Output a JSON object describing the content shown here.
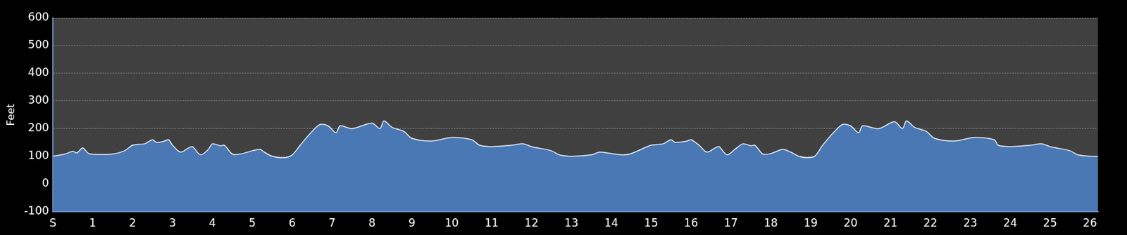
{
  "chart_data": {
    "type": "area",
    "y_label": "Feet",
    "x": [
      0,
      0.3,
      0.5,
      0.6,
      0.75,
      0.9,
      1.2,
      1.5,
      1.8,
      2.0,
      2.3,
      2.5,
      2.6,
      2.8,
      2.9,
      3.0,
      3.2,
      3.4,
      3.5,
      3.7,
      3.9,
      4.0,
      4.2,
      4.3,
      4.5,
      4.7,
      5.0,
      5.2,
      5.3,
      5.5,
      5.8,
      6.0,
      6.2,
      6.5,
      6.7,
      6.9,
      7.1,
      7.2,
      7.5,
      8.0,
      8.2,
      8.3,
      8.5,
      8.8,
      9.0,
      9.5,
      10.0,
      10.5,
      10.7,
      11.0,
      11.5,
      11.8,
      12.0,
      12.5,
      12.7,
      13.0,
      13.5,
      13.7,
      14.0,
      14.3,
      14.5,
      15.0,
      15.3,
      15.5,
      15.6,
      15.9,
      16.0,
      16.2,
      16.4,
      16.6,
      16.7,
      16.9,
      17.1,
      17.3,
      17.5,
      17.6,
      17.8,
      18.0,
      18.3,
      18.5,
      18.7,
      18.9,
      19.1,
      19.3,
      19.6,
      19.8,
      20.0,
      20.2,
      20.3,
      20.7,
      21.1,
      21.3,
      21.4,
      21.6,
      21.9,
      22.1,
      22.6,
      23.1,
      23.6,
      23.7,
      24.0,
      24.5,
      24.8,
      25.0,
      25.5,
      25.7,
      26.0,
      26.2
    ],
    "values": [
      100,
      108,
      118,
      112,
      130,
      110,
      107,
      108,
      120,
      140,
      145,
      160,
      150,
      155,
      160,
      140,
      115,
      130,
      135,
      105,
      125,
      145,
      138,
      140,
      108,
      108,
      120,
      125,
      115,
      100,
      95,
      105,
      140,
      190,
      215,
      210,
      185,
      210,
      200,
      220,
      200,
      228,
      205,
      190,
      165,
      155,
      168,
      160,
      140,
      135,
      140,
      145,
      135,
      120,
      105,
      100,
      105,
      115,
      110,
      105,
      110,
      140,
      145,
      160,
      150,
      155,
      160,
      140,
      115,
      130,
      135,
      105,
      125,
      145,
      138,
      140,
      108,
      110,
      125,
      115,
      100,
      95,
      100,
      140,
      190,
      215,
      210,
      185,
      210,
      200,
      225,
      200,
      228,
      205,
      190,
      165,
      155,
      168,
      160,
      140,
      135,
      140,
      145,
      135,
      120,
      105,
      100,
      100
    ],
    "color": "#4a78b5",
    "xlim": [
      0,
      26.2
    ],
    "xticks": [
      {
        "value": 0,
        "label": "S"
      },
      1,
      2,
      3,
      4,
      5,
      6,
      7,
      8,
      9,
      10,
      11,
      12,
      13,
      14,
      15,
      16,
      17,
      18,
      19,
      20,
      21,
      22,
      23,
      24,
      25,
      26
    ],
    "ylim": [
      -100,
      600
    ],
    "yticks": [
      -100,
      0,
      100,
      200,
      300,
      400,
      500,
      600
    ],
    "grid": true
  }
}
